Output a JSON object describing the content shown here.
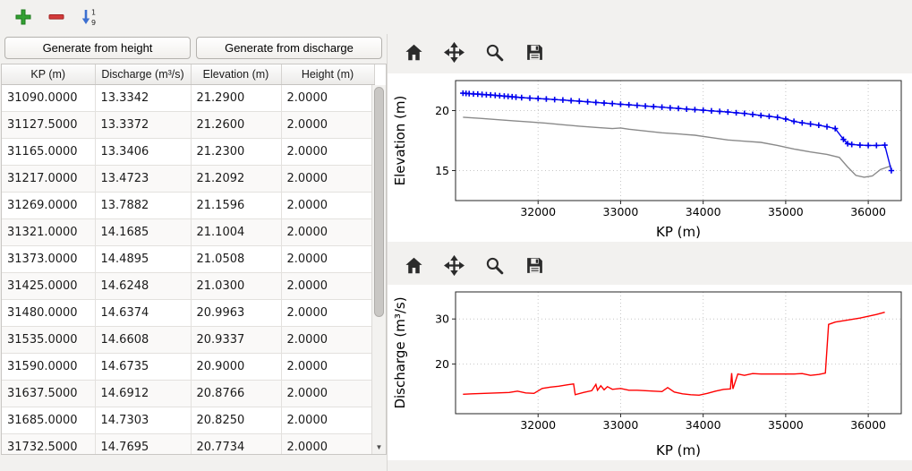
{
  "window": {
    "background": "#f2f1ef"
  },
  "main_toolbar": {
    "buttons": [
      {
        "name": "add",
        "icon": "plus-icon"
      },
      {
        "name": "remove",
        "icon": "minus-icon"
      },
      {
        "name": "sort",
        "icon": "sort-numeric-ascending-icon"
      }
    ]
  },
  "left": {
    "buttons": {
      "generate_height": "Generate from height",
      "generate_discharge": "Generate from discharge"
    },
    "table": {
      "columns": [
        "KP (m)",
        "Discharge (m³/s)",
        "Elevation (m)",
        "Height (m)"
      ],
      "rows": [
        [
          "31090.0000",
          "13.3342",
          "21.2900",
          "2.0000"
        ],
        [
          "31127.5000",
          "13.3372",
          "21.2600",
          "2.0000"
        ],
        [
          "31165.0000",
          "13.3406",
          "21.2300",
          "2.0000"
        ],
        [
          "31217.0000",
          "13.4723",
          "21.2092",
          "2.0000"
        ],
        [
          "31269.0000",
          "13.7882",
          "21.1596",
          "2.0000"
        ],
        [
          "31321.0000",
          "14.1685",
          "21.1004",
          "2.0000"
        ],
        [
          "31373.0000",
          "14.4895",
          "21.0508",
          "2.0000"
        ],
        [
          "31425.0000",
          "14.6248",
          "21.0300",
          "2.0000"
        ],
        [
          "31480.0000",
          "14.6374",
          "20.9963",
          "2.0000"
        ],
        [
          "31535.0000",
          "14.6608",
          "20.9337",
          "2.0000"
        ],
        [
          "31590.0000",
          "14.6735",
          "20.9000",
          "2.0000"
        ],
        [
          "31637.5000",
          "14.6912",
          "20.8766",
          "2.0000"
        ],
        [
          "31685.0000",
          "14.7303",
          "20.8250",
          "2.0000"
        ],
        [
          "31732.5000",
          "14.7695",
          "20.7734",
          "2.0000"
        ]
      ]
    },
    "scrollbar": {
      "down_arrow": "▼"
    }
  },
  "plot_toolbar": {
    "icons": [
      "home-icon",
      "pan-icon",
      "zoom-icon",
      "save-icon"
    ]
  },
  "colors": {
    "elevation_line": "#0000ee",
    "reference_line": "#8a8a8a",
    "discharge_line": "#ff0000"
  },
  "chart_data": [
    {
      "type": "line",
      "title": "",
      "xlabel": "KP (m)",
      "ylabel": "Elevation (m)",
      "xlim": [
        31000,
        36400
      ],
      "ylim": [
        12.5,
        22.5
      ],
      "xticks": [
        32000,
        33000,
        34000,
        35000,
        36000
      ],
      "yticks": [
        15,
        20
      ],
      "grid": true,
      "legend": false,
      "series": [
        {
          "name": "reference-profile",
          "color": "#8a8a8a",
          "marker": "",
          "x": [
            31090,
            31300,
            31500,
            31700,
            31900,
            32100,
            32300,
            32500,
            32700,
            32900,
            33000,
            33100,
            33300,
            33500,
            33700,
            33900,
            34100,
            34300,
            34500,
            34700,
            34900,
            35100,
            35300,
            35500,
            35650,
            35750,
            35850,
            35950,
            36050,
            36150,
            36280
          ],
          "y": [
            19.45,
            19.35,
            19.25,
            19.15,
            19.05,
            18.95,
            18.82,
            18.7,
            18.6,
            18.5,
            18.55,
            18.45,
            18.3,
            18.15,
            18.05,
            17.95,
            17.75,
            17.55,
            17.45,
            17.35,
            17.1,
            16.8,
            16.55,
            16.35,
            16.1,
            15.3,
            14.6,
            14.45,
            14.55,
            15.1,
            15.4
          ]
        },
        {
          "name": "elevation-profile",
          "color": "#0000ee",
          "marker": "+",
          "x": [
            31090,
            31127,
            31165,
            31217,
            31269,
            31321,
            31373,
            31425,
            31480,
            31535,
            31590,
            31637,
            31685,
            31732,
            31800,
            31900,
            32000,
            32100,
            32200,
            32300,
            32400,
            32500,
            32600,
            32700,
            32800,
            32900,
            33000,
            33100,
            33200,
            33300,
            33400,
            33500,
            33600,
            33700,
            33800,
            33900,
            34000,
            34100,
            34200,
            34300,
            34400,
            34500,
            34600,
            34700,
            34800,
            34900,
            35000,
            35100,
            35200,
            35300,
            35400,
            35500,
            35600,
            35700,
            35750,
            35800,
            35900,
            36000,
            36100,
            36200,
            36280
          ],
          "y": [
            21.45,
            21.43,
            21.41,
            21.39,
            21.37,
            21.34,
            21.32,
            21.3,
            21.27,
            21.24,
            21.21,
            21.18,
            21.15,
            21.12,
            21.08,
            21.04,
            21.0,
            20.96,
            20.92,
            20.88,
            20.83,
            20.78,
            20.73,
            20.68,
            20.63,
            20.58,
            20.53,
            20.48,
            20.43,
            20.38,
            20.33,
            20.28,
            20.23,
            20.18,
            20.13,
            20.08,
            20.03,
            19.98,
            19.93,
            19.88,
            19.82,
            19.76,
            19.68,
            19.6,
            19.52,
            19.44,
            19.3,
            19.1,
            18.98,
            18.88,
            18.78,
            18.66,
            18.5,
            17.6,
            17.25,
            17.18,
            17.12,
            17.1,
            17.1,
            17.12,
            15.0
          ]
        }
      ]
    },
    {
      "type": "line",
      "title": "",
      "xlabel": "KP (m)",
      "ylabel": "Discharge (m³/s)",
      "xlim": [
        31000,
        36400
      ],
      "ylim": [
        9,
        36
      ],
      "xticks": [
        32000,
        33000,
        34000,
        35000,
        36000
      ],
      "yticks": [
        20,
        30
      ],
      "grid": true,
      "legend": false,
      "series": [
        {
          "name": "discharge-profile",
          "color": "#ff0000",
          "marker": "",
          "x": [
            31090,
            31200,
            31350,
            31500,
            31650,
            31750,
            31850,
            31950,
            32050,
            32150,
            32250,
            32350,
            32430,
            32450,
            32550,
            32650,
            32700,
            32720,
            32760,
            32800,
            32840,
            32900,
            33000,
            33100,
            33200,
            33300,
            33400,
            33500,
            33570,
            33650,
            33750,
            33850,
            33950,
            34050,
            34150,
            34250,
            34330,
            34345,
            34360,
            34420,
            34500,
            34600,
            34700,
            34800,
            34900,
            35000,
            35100,
            35200,
            35300,
            35400,
            35480,
            35520,
            35600,
            35700,
            35800,
            35900,
            36000,
            36100,
            36200
          ],
          "y": [
            13.3,
            13.4,
            13.5,
            13.6,
            13.7,
            14.0,
            13.6,
            13.5,
            14.6,
            14.9,
            15.1,
            15.4,
            15.6,
            13.2,
            13.7,
            14.1,
            15.5,
            14.2,
            15.2,
            14.3,
            15.0,
            14.4,
            14.6,
            14.2,
            14.2,
            14.1,
            14.0,
            13.9,
            14.8,
            13.8,
            13.4,
            13.2,
            13.1,
            13.5,
            14.0,
            14.4,
            14.5,
            18.0,
            14.5,
            17.8,
            17.5,
            17.9,
            17.8,
            17.8,
            17.8,
            17.8,
            17.8,
            17.9,
            17.5,
            17.7,
            18.0,
            28.8,
            29.3,
            29.6,
            29.9,
            30.2,
            30.6,
            31.0,
            31.5
          ]
        }
      ]
    }
  ]
}
